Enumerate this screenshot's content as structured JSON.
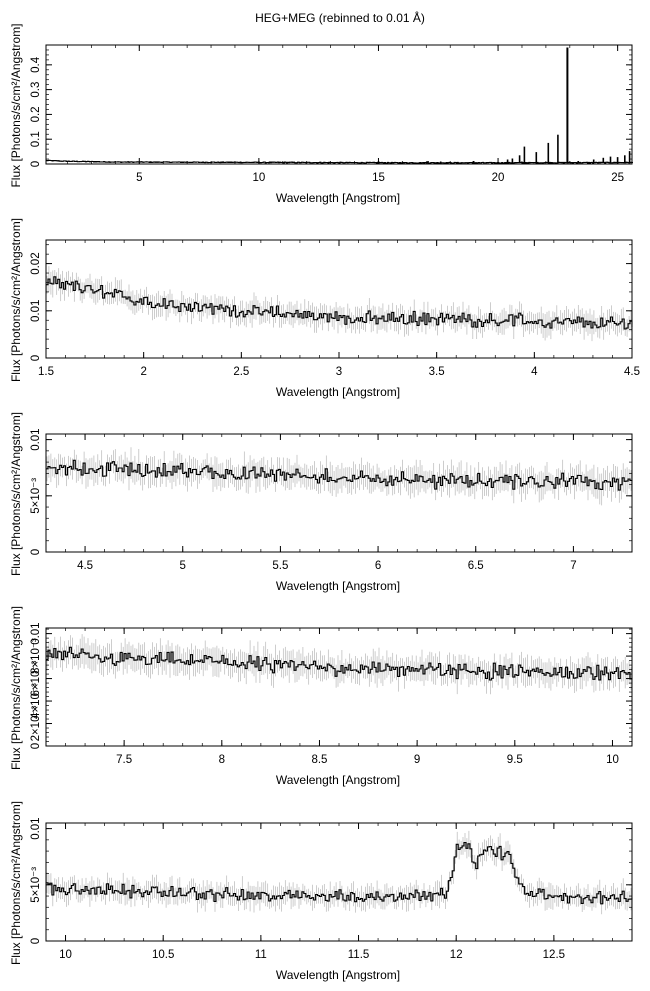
{
  "figure_title": "HEG+MEG (rebinned to 0.01 Å)",
  "chart_data": [
    {
      "type": "line",
      "xlabel": "Wavelength [Angstrom]",
      "ylabel": "Flux [Photons/s/cm²/Angstrom]",
      "xlim": [
        1.1,
        25.6
      ],
      "ylim": [
        0,
        0.48
      ],
      "x_ticks": [
        5,
        10,
        15,
        20,
        25
      ],
      "y_ticks": [
        0,
        0.1,
        0.2,
        0.3,
        0.4
      ],
      "y_tick_labels": [
        "0",
        "0.1",
        "0.2",
        "0.3",
        "0.4"
      ],
      "continuum_approx": [
        [
          1.1,
          0.014
        ],
        [
          2,
          0.011
        ],
        [
          4,
          0.008
        ],
        [
          8,
          0.007
        ],
        [
          12,
          0.006
        ],
        [
          16,
          0.005
        ],
        [
          20,
          0.005
        ],
        [
          25.6,
          0.006
        ]
      ],
      "emission_lines": [
        {
          "x": 15.0,
          "y": 0.012
        },
        {
          "x": 16.0,
          "y": 0.009
        },
        {
          "x": 17.07,
          "y": 0.012
        },
        {
          "x": 17.6,
          "y": 0.01
        },
        {
          "x": 18.97,
          "y": 0.012
        },
        {
          "x": 19.7,
          "y": 0.008
        },
        {
          "x": 20.4,
          "y": 0.018
        },
        {
          "x": 20.6,
          "y": 0.022
        },
        {
          "x": 20.9,
          "y": 0.035
        },
        {
          "x": 21.1,
          "y": 0.07
        },
        {
          "x": 21.6,
          "y": 0.048
        },
        {
          "x": 22.1,
          "y": 0.085
        },
        {
          "x": 22.5,
          "y": 0.118
        },
        {
          "x": 22.9,
          "y": 0.47
        },
        {
          "x": 23.35,
          "y": 0.012
        },
        {
          "x": 24.0,
          "y": 0.018
        },
        {
          "x": 24.4,
          "y": 0.025
        },
        {
          "x": 24.7,
          "y": 0.03
        },
        {
          "x": 25.0,
          "y": 0.028
        },
        {
          "x": 25.3,
          "y": 0.035
        },
        {
          "x": 25.5,
          "y": 0.052
        }
      ]
    },
    {
      "type": "line",
      "xlabel": "Wavelength [Angstrom]",
      "ylabel": "Flux [Photons/s/cm²/Angstrom]",
      "xlim": [
        1.5,
        4.5
      ],
      "ylim": [
        0,
        0.025
      ],
      "x_ticks": [
        1.5,
        2,
        2.5,
        3,
        3.5,
        4,
        4.5
      ],
      "y_ticks": [
        0,
        0.01,
        0.02
      ],
      "y_tick_labels": [
        "0",
        "0.01",
        "0.02"
      ],
      "profile": [
        [
          1.5,
          0.016
        ],
        [
          1.9,
          0.013
        ],
        [
          2.0,
          0.012
        ],
        [
          2.5,
          0.01
        ],
        [
          3.0,
          0.0085
        ],
        [
          3.5,
          0.0083
        ],
        [
          4.0,
          0.0078
        ],
        [
          4.5,
          0.0072
        ]
      ],
      "noise": 0.0012
    },
    {
      "type": "line",
      "xlabel": "Wavelength [Angstrom]",
      "ylabel": "Flux [Photons/s/cm²/Angstrom]",
      "xlim": [
        4.3,
        7.3
      ],
      "ylim": [
        0,
        0.0105
      ],
      "x_ticks": [
        4.5,
        5,
        5.5,
        6,
        6.5,
        7
      ],
      "y_ticks": [
        0,
        0.005,
        0.01
      ],
      "y_tick_labels": [
        "0",
        "5×10⁻³",
        "0.01"
      ],
      "profile": [
        [
          4.3,
          0.0075
        ],
        [
          5.0,
          0.0072
        ],
        [
          5.5,
          0.0068
        ],
        [
          6.0,
          0.0065
        ],
        [
          6.5,
          0.0063
        ],
        [
          7.3,
          0.0062
        ]
      ],
      "noise": 0.0006
    },
    {
      "type": "line",
      "xlabel": "Wavelength [Angstrom]",
      "ylabel": "Flux [Photons/s/cm²/Angstrom]",
      "xlim": [
        7.1,
        10.1
      ],
      "ylim": [
        0,
        0.0105
      ],
      "x_ticks": [
        7.5,
        8,
        8.5,
        9,
        9.5,
        10
      ],
      "y_ticks": [
        0,
        0.002,
        0.004,
        0.006,
        0.008,
        0.01
      ],
      "y_tick_labels": [
        "0",
        "2×10⁻³",
        "4×10⁻³",
        "6×10⁻³",
        "8×10⁻³",
        "0.01"
      ],
      "profile": [
        [
          7.1,
          0.0081
        ],
        [
          7.5,
          0.0078
        ],
        [
          8.0,
          0.0075
        ],
        [
          8.5,
          0.007
        ],
        [
          9.0,
          0.0068
        ],
        [
          9.5,
          0.0066
        ],
        [
          10.1,
          0.0065
        ]
      ],
      "noise": 0.0006
    },
    {
      "type": "line",
      "xlabel": "Wavelength [Angstrom]",
      "ylabel": "Flux [Photons/s/cm²/Angstrom]",
      "xlim": [
        9.9,
        12.9
      ],
      "ylim": [
        0,
        0.0105
      ],
      "x_ticks": [
        10,
        10.5,
        11,
        11.5,
        12,
        12.5
      ],
      "y_ticks": [
        0,
        0.005,
        0.01
      ],
      "y_tick_labels": [
        "0",
        "5×10⁻³",
        "0.01"
      ],
      "profile": [
        [
          9.9,
          0.0046
        ],
        [
          10.5,
          0.0043
        ],
        [
          11.0,
          0.004
        ],
        [
          11.5,
          0.0039
        ],
        [
          11.95,
          0.0042
        ],
        [
          12.0,
          0.0082
        ],
        [
          12.05,
          0.0085
        ],
        [
          12.1,
          0.0068
        ],
        [
          12.15,
          0.0082
        ],
        [
          12.25,
          0.0078
        ],
        [
          12.3,
          0.006
        ],
        [
          12.35,
          0.0043
        ],
        [
          12.5,
          0.0039
        ],
        [
          12.9,
          0.0038
        ]
      ],
      "noise": 0.0005
    }
  ]
}
